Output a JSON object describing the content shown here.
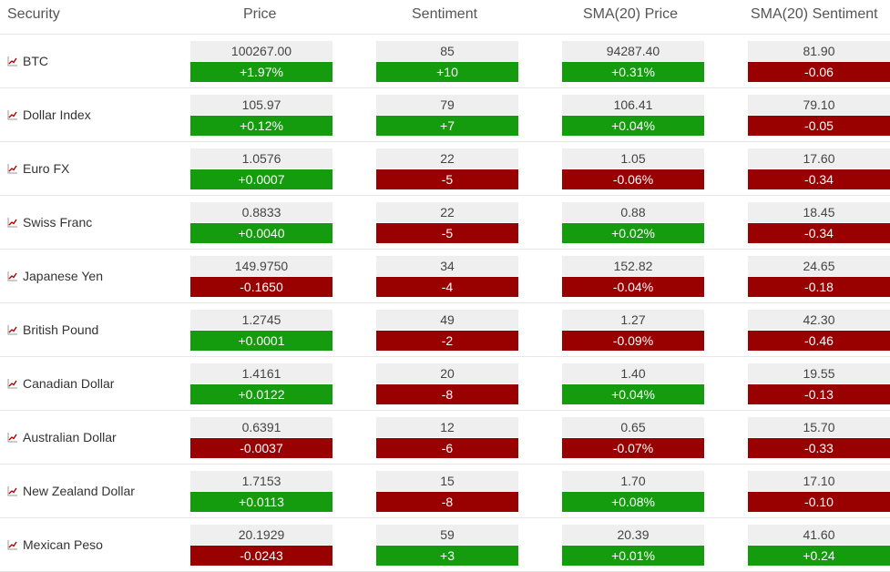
{
  "headers": {
    "security": "Security",
    "price": "Price",
    "sentiment": "Sentiment",
    "sma_price": "SMA(20) Price",
    "sma_sentiment": "SMA(20) Sentiment"
  },
  "colors": {
    "up": "#149c0e",
    "down": "#990000",
    "value_bg": "#efefef",
    "icon": "#b30000"
  },
  "rows": [
    {
      "name": "BTC",
      "price": {
        "value": "100267.00",
        "change": "+1.97%",
        "dir": "up"
      },
      "sentiment": {
        "value": "85",
        "change": "+10",
        "dir": "up"
      },
      "sma_price": {
        "value": "94287.40",
        "change": "+0.31%",
        "dir": "up"
      },
      "sma_sentiment": {
        "value": "81.90",
        "change": "-0.06",
        "dir": "down"
      }
    },
    {
      "name": "Dollar Index",
      "price": {
        "value": "105.97",
        "change": "+0.12%",
        "dir": "up"
      },
      "sentiment": {
        "value": "79",
        "change": "+7",
        "dir": "up"
      },
      "sma_price": {
        "value": "106.41",
        "change": "+0.04%",
        "dir": "up"
      },
      "sma_sentiment": {
        "value": "79.10",
        "change": "-0.05",
        "dir": "down"
      }
    },
    {
      "name": "Euro FX",
      "price": {
        "value": "1.0576",
        "change": "+0.0007",
        "dir": "up"
      },
      "sentiment": {
        "value": "22",
        "change": "-5",
        "dir": "down"
      },
      "sma_price": {
        "value": "1.05",
        "change": "-0.06%",
        "dir": "down"
      },
      "sma_sentiment": {
        "value": "17.60",
        "change": "-0.34",
        "dir": "down"
      }
    },
    {
      "name": "Swiss Franc",
      "price": {
        "value": "0.8833",
        "change": "+0.0040",
        "dir": "up"
      },
      "sentiment": {
        "value": "22",
        "change": "-5",
        "dir": "down"
      },
      "sma_price": {
        "value": "0.88",
        "change": "+0.02%",
        "dir": "up"
      },
      "sma_sentiment": {
        "value": "18.45",
        "change": "-0.34",
        "dir": "down"
      }
    },
    {
      "name": "Japanese Yen",
      "price": {
        "value": "149.9750",
        "change": "-0.1650",
        "dir": "down"
      },
      "sentiment": {
        "value": "34",
        "change": "-4",
        "dir": "down"
      },
      "sma_price": {
        "value": "152.82",
        "change": "-0.04%",
        "dir": "down"
      },
      "sma_sentiment": {
        "value": "24.65",
        "change": "-0.18",
        "dir": "down"
      }
    },
    {
      "name": "British Pound",
      "price": {
        "value": "1.2745",
        "change": "+0.0001",
        "dir": "up"
      },
      "sentiment": {
        "value": "49",
        "change": "-2",
        "dir": "down"
      },
      "sma_price": {
        "value": "1.27",
        "change": "-0.09%",
        "dir": "down"
      },
      "sma_sentiment": {
        "value": "42.30",
        "change": "-0.46",
        "dir": "down"
      }
    },
    {
      "name": "Canadian Dollar",
      "price": {
        "value": "1.4161",
        "change": "+0.0122",
        "dir": "up"
      },
      "sentiment": {
        "value": "20",
        "change": "-8",
        "dir": "down"
      },
      "sma_price": {
        "value": "1.40",
        "change": "+0.04%",
        "dir": "up"
      },
      "sma_sentiment": {
        "value": "19.55",
        "change": "-0.13",
        "dir": "down"
      }
    },
    {
      "name": "Australian Dollar",
      "price": {
        "value": "0.6391",
        "change": "-0.0037",
        "dir": "down"
      },
      "sentiment": {
        "value": "12",
        "change": "-6",
        "dir": "down"
      },
      "sma_price": {
        "value": "0.65",
        "change": "-0.07%",
        "dir": "down"
      },
      "sma_sentiment": {
        "value": "15.70",
        "change": "-0.33",
        "dir": "down"
      }
    },
    {
      "name": "New Zealand Dollar",
      "price": {
        "value": "1.7153",
        "change": "+0.0113",
        "dir": "up"
      },
      "sentiment": {
        "value": "15",
        "change": "-8",
        "dir": "down"
      },
      "sma_price": {
        "value": "1.70",
        "change": "+0.08%",
        "dir": "up"
      },
      "sma_sentiment": {
        "value": "17.10",
        "change": "-0.10",
        "dir": "down"
      }
    },
    {
      "name": "Mexican Peso",
      "price": {
        "value": "20.1929",
        "change": "-0.0243",
        "dir": "down"
      },
      "sentiment": {
        "value": "59",
        "change": "+3",
        "dir": "up"
      },
      "sma_price": {
        "value": "20.39",
        "change": "+0.01%",
        "dir": "up"
      },
      "sma_sentiment": {
        "value": "41.60",
        "change": "+0.24",
        "dir": "up"
      }
    }
  ]
}
